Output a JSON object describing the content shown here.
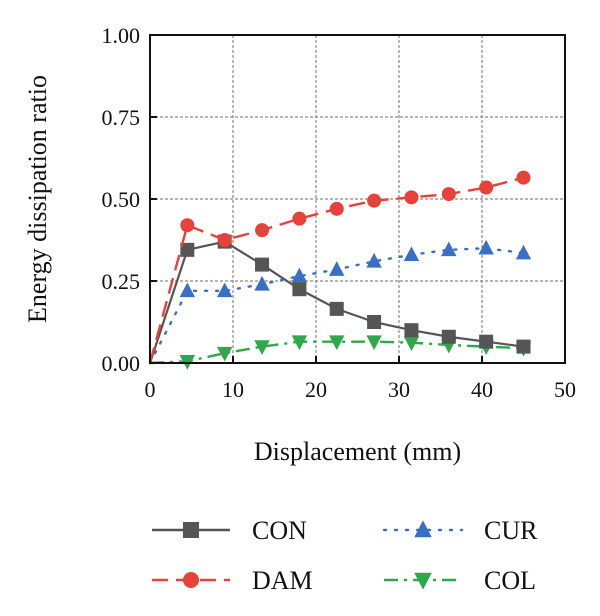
{
  "chart_data": {
    "type": "line",
    "xlabel": "Displacement (mm)",
    "ylabel": "Energy dissipation ratio",
    "xlim": [
      0,
      50
    ],
    "ylim": [
      0,
      1
    ],
    "xticks": [
      "0",
      "10",
      "20",
      "30",
      "40",
      "50"
    ],
    "yticks": [
      "0.00",
      "0.25",
      "0.50",
      "0.75",
      "1.00"
    ],
    "grid": true,
    "legend_position": "bottom",
    "series": [
      {
        "name": "CON",
        "color": "#555555",
        "marker": "square",
        "line": "solid",
        "points": [
          [
            0,
            0.0
          ],
          [
            4.5,
            0.345
          ],
          [
            9,
            0.37
          ],
          [
            13.5,
            0.3
          ],
          [
            18,
            0.225
          ],
          [
            22.5,
            0.165
          ],
          [
            27,
            0.125
          ],
          [
            31.5,
            0.1
          ],
          [
            36,
            0.08
          ],
          [
            40.5,
            0.065
          ],
          [
            45,
            0.05
          ]
        ]
      },
      {
        "name": "DAM",
        "color": "#e8413a",
        "marker": "circle",
        "line": "dashed",
        "points": [
          [
            0,
            0.0
          ],
          [
            4.5,
            0.42
          ],
          [
            9,
            0.375
          ],
          [
            13.5,
            0.405
          ],
          [
            18,
            0.44
          ],
          [
            22.5,
            0.47
          ],
          [
            27,
            0.495
          ],
          [
            31.5,
            0.505
          ],
          [
            36,
            0.515
          ],
          [
            40.5,
            0.535
          ],
          [
            45,
            0.565
          ]
        ]
      },
      {
        "name": "CUR",
        "color": "#3b6fc4",
        "marker": "triangle-up",
        "line": "dotted",
        "points": [
          [
            0,
            0.0
          ],
          [
            4.5,
            0.22
          ],
          [
            9,
            0.22
          ],
          [
            13.5,
            0.24
          ],
          [
            18,
            0.265
          ],
          [
            22.5,
            0.285
          ],
          [
            27,
            0.31
          ],
          [
            31.5,
            0.33
          ],
          [
            36,
            0.345
          ],
          [
            40.5,
            0.35
          ],
          [
            45,
            0.335
          ]
        ]
      },
      {
        "name": "COL",
        "color": "#2ea84a",
        "marker": "triangle-down",
        "line": "dashdot",
        "points": [
          [
            0,
            0.0
          ],
          [
            4.5,
            0.005
          ],
          [
            9,
            0.03
          ],
          [
            13.5,
            0.05
          ],
          [
            18,
            0.065
          ],
          [
            22.5,
            0.065
          ],
          [
            27,
            0.065
          ],
          [
            31.5,
            0.062
          ],
          [
            36,
            0.055
          ],
          [
            40.5,
            0.05
          ],
          [
            45,
            0.045
          ]
        ]
      }
    ]
  }
}
